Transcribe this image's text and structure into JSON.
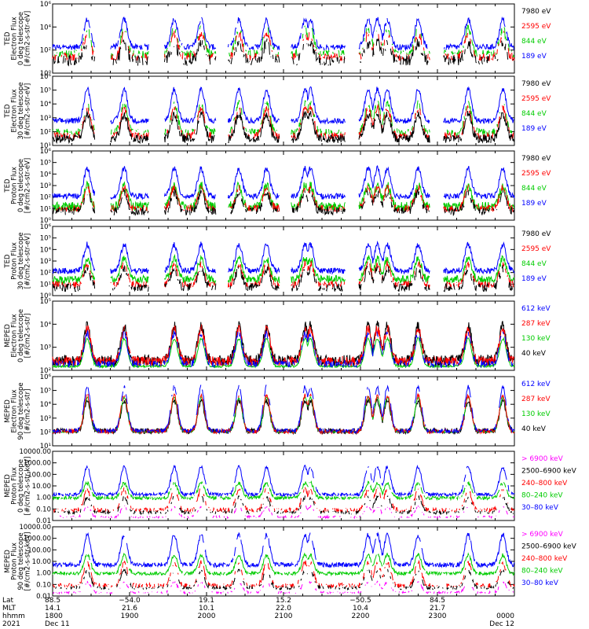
{
  "chart_data": [
    {
      "type": "line",
      "ylabel_lines": [
        "TED",
        "Electron Flux",
        "0 deg telescope",
        "[#/cm2-s-str-eV]"
      ],
      "yscale": "log",
      "ylim": [
        1,
        1000000
      ],
      "yticks": [
        {
          "v": 1,
          "label": "10⁰"
        },
        {
          "v": 100,
          "label": "10²"
        },
        {
          "v": 10000,
          "label": "10⁴"
        },
        {
          "v": 1000000,
          "label": "10⁶"
        }
      ],
      "series": [
        {
          "name": "7980 eV",
          "color": "#000000",
          "base": 12,
          "peak": 1.5,
          "noise": 0.45,
          "level": 0.32,
          "gaps": true
        },
        {
          "name": "2595 eV",
          "color": "#ff0000",
          "base": 25,
          "peak": 2.0,
          "noise": 0.35,
          "level": 0.22,
          "gaps": true
        },
        {
          "name": "844 eV",
          "color": "#00cc00",
          "base": 45,
          "peak": 2.2,
          "noise": 0.35,
          "level": 0.22,
          "gaps": true
        },
        {
          "name": "189 eV",
          "color": "#0000ff",
          "base": 180,
          "peak": 2.4,
          "noise": 0.25,
          "level": 0.9,
          "gaps": true
        }
      ]
    },
    {
      "type": "line",
      "ylabel_lines": [
        "TED",
        "Electron Flux",
        "30 deg telescope",
        "[#/cm2-s-str-eV]"
      ],
      "yscale": "log",
      "ylim": [
        10,
        1000000
      ],
      "yticks": [
        {
          "v": 10,
          "label": "10¹"
        },
        {
          "v": 100,
          "label": "10²"
        },
        {
          "v": 1000,
          "label": "10³"
        },
        {
          "v": 10000,
          "label": "10⁴"
        },
        {
          "v": 100000,
          "label": "10⁵"
        },
        {
          "v": 1000000,
          "label": "10⁶"
        }
      ],
      "series": [
        {
          "name": "7980 eV",
          "color": "#000000",
          "base": 30,
          "peak": 1.8,
          "noise": 0.3,
          "level": 0.9,
          "gaps": true
        },
        {
          "name": "2595 eV",
          "color": "#ff0000",
          "base": 50,
          "peak": 2.0,
          "noise": 0.25,
          "level": 0.5,
          "gaps": true
        },
        {
          "name": "844 eV",
          "color": "#00cc00",
          "base": 90,
          "peak": 2.1,
          "noise": 0.25,
          "level": 0.4,
          "gaps": true
        },
        {
          "name": "189 eV",
          "color": "#0000ff",
          "base": 600,
          "peak": 2.3,
          "noise": 0.2,
          "level": 1.0,
          "gaps": true
        }
      ]
    },
    {
      "type": "line",
      "ylabel_lines": [
        "TED",
        "Proton Flux",
        "0 deg telescope",
        "[#/cm2-s-str-eV]"
      ],
      "yscale": "log",
      "ylim": [
        1,
        1000000
      ],
      "yticks": [
        {
          "v": 1,
          "label": "10⁰"
        },
        {
          "v": 10,
          "label": "10¹"
        },
        {
          "v": 100,
          "label": "10²"
        },
        {
          "v": 1000,
          "label": "10³"
        },
        {
          "v": 10000,
          "label": "10⁴"
        },
        {
          "v": 100000,
          "label": "10⁵"
        },
        {
          "v": 1000000,
          "label": "10⁶"
        }
      ],
      "series": [
        {
          "name": "7980 eV",
          "color": "#000000",
          "base": 6,
          "peak": 1.6,
          "noise": 0.35,
          "level": 0.5,
          "gaps": true
        },
        {
          "name": "2595 eV",
          "color": "#ff0000",
          "base": 10,
          "peak": 1.8,
          "noise": 0.3,
          "level": 0.5,
          "gaps": true
        },
        {
          "name": "844 eV",
          "color": "#00cc00",
          "base": 15,
          "peak": 1.8,
          "noise": 0.4,
          "level": 1.0,
          "gaps": true
        },
        {
          "name": "189 eV",
          "color": "#0000ff",
          "base": 120,
          "peak": 2.4,
          "noise": 0.25,
          "level": 1.0,
          "gaps": true
        }
      ]
    },
    {
      "type": "line",
      "ylabel_lines": [
        "TED",
        "Proton Flux",
        "30 deg telescope",
        "[#/cm2-s-str-eV]"
      ],
      "yscale": "log",
      "ylim": [
        1,
        1000000
      ],
      "yticks": [
        {
          "v": 1,
          "label": "10⁰"
        },
        {
          "v": 10,
          "label": "10¹"
        },
        {
          "v": 100,
          "label": "10²"
        },
        {
          "v": 1000,
          "label": "10³"
        },
        {
          "v": 10000,
          "label": "10⁴"
        },
        {
          "v": 100000,
          "label": "10⁵"
        },
        {
          "v": 1000000,
          "label": "10⁶"
        }
      ],
      "series": [
        {
          "name": "7980 eV",
          "color": "#000000",
          "base": 5,
          "peak": 1.6,
          "noise": 0.35,
          "level": 0.5,
          "gaps": true
        },
        {
          "name": "2595 eV",
          "color": "#ff0000",
          "base": 9,
          "peak": 1.8,
          "noise": 0.3,
          "level": 0.5,
          "gaps": true
        },
        {
          "name": "844 eV",
          "color": "#00cc00",
          "base": 25,
          "peak": 1.8,
          "noise": 0.35,
          "level": 1.0,
          "gaps": true
        },
        {
          "name": "189 eV",
          "color": "#0000ff",
          "base": 140,
          "peak": 2.3,
          "noise": 0.25,
          "level": 1.0,
          "gaps": true
        }
      ]
    },
    {
      "type": "line",
      "ylabel_lines": [
        "MEPED",
        "Electron Flux",
        "0 deg telescope",
        "[#/cm2-s-str]"
      ],
      "yscale": "log",
      "ylim": [
        100,
        100000
      ],
      "yticks": [
        {
          "v": 100,
          "label": "10²"
        },
        {
          "v": 1000,
          "label": "10³"
        },
        {
          "v": 10000,
          "label": "10⁴"
        },
        {
          "v": 100000,
          "label": "10⁵"
        }
      ],
      "series": [
        {
          "name": "612 keV",
          "color": "#0000ff",
          "base": 190,
          "peak": 1.3,
          "noise": 0.15,
          "level": 0.5,
          "gaps": false
        },
        {
          "name": "287 keV",
          "color": "#ff0000",
          "base": 250,
          "peak": 1.4,
          "noise": 0.2,
          "level": 0.9,
          "gaps": false
        },
        {
          "name": "130 keV",
          "color": "#00cc00",
          "base": 150,
          "peak": 1.2,
          "noise": 0.05,
          "level": 1.0,
          "gaps": false
        },
        {
          "name": "40 keV",
          "color": "#000000",
          "base": 260,
          "peak": 1.5,
          "noise": 0.25,
          "level": 1.0,
          "gaps": false
        }
      ]
    },
    {
      "type": "line",
      "ylabel_lines": [
        "MEPED",
        "Electron Flux",
        "90 deg telescope",
        "[#/cm2-s-str]"
      ],
      "yscale": "log",
      "ylim": [
        10,
        1000000
      ],
      "yticks": [
        {
          "v": 10,
          "label": "10¹"
        },
        {
          "v": 100,
          "label": "10²"
        },
        {
          "v": 1000,
          "label": "10³"
        },
        {
          "v": 10000,
          "label": "10⁴"
        },
        {
          "v": 100000,
          "label": "10⁵"
        },
        {
          "v": 1000000,
          "label": "10⁶"
        }
      ],
      "series": [
        {
          "name": "612 keV",
          "color": "#0000ff",
          "base": 120,
          "peak": 3.2,
          "noise": 0.15,
          "level": 0.6,
          "gaps": false
        },
        {
          "name": "287 keV",
          "color": "#ff0000",
          "base": 110,
          "peak": 2.6,
          "noise": 0.15,
          "level": 0.8,
          "gaps": false
        },
        {
          "name": "130 keV",
          "color": "#00cc00",
          "base": 100,
          "peak": 2.5,
          "noise": 0.05,
          "level": 1.0,
          "gaps": false
        },
        {
          "name": "40 keV",
          "color": "#000000",
          "base": 115,
          "peak": 2.2,
          "noise": 0.2,
          "level": 1.0,
          "gaps": false
        }
      ]
    },
    {
      "type": "line",
      "ylabel_lines": [
        "MEPED",
        "Proton Flux",
        "0 deg telescope",
        "[#/cm2-s-str-keV]"
      ],
      "yscale": "log",
      "ylim": [
        0.01,
        10000
      ],
      "yticks": [
        {
          "v": 0.01,
          "label": "0.01"
        },
        {
          "v": 0.1,
          "label": "0.10"
        },
        {
          "v": 1,
          "label": "1.00"
        },
        {
          "v": 10,
          "label": "10.00"
        },
        {
          "v": 100,
          "label": "100.00"
        },
        {
          "v": 1000,
          "label": "1000.00"
        },
        {
          "v": 10000,
          "label": "10000.00"
        }
      ],
      "series": [
        {
          "name": "> 6900 keV",
          "color": "#ff00ff",
          "base": 0.02,
          "peak": 0.9,
          "noise": 0.1,
          "level": 0.05,
          "gaps": false
        },
        {
          "name": "2500–6900 keV",
          "color": "#000000",
          "base": 0.05,
          "peak": 1.3,
          "noise": 0.15,
          "level": 0.1,
          "gaps": false
        },
        {
          "name": "240–800 keV",
          "color": "#ff0000",
          "base": 0.08,
          "peak": 1.8,
          "noise": 0.2,
          "level": 0.3,
          "gaps": false
        },
        {
          "name": "80–240 keV",
          "color": "#00cc00",
          "base": 0.9,
          "peak": 1.3,
          "noise": 0.15,
          "level": 0.8,
          "gaps": false
        },
        {
          "name": "30–80 keV",
          "color": "#0000ff",
          "base": 1.8,
          "peak": 2.4,
          "noise": 0.15,
          "level": 0.9,
          "gaps": false
        }
      ]
    },
    {
      "type": "line",
      "ylabel_lines": [
        "MEPED",
        "Proton Flux",
        "90 deg telescope",
        "[#/cm2-s-str-keV]"
      ],
      "yscale": "log",
      "ylim": [
        0.01,
        10000
      ],
      "yticks": [
        {
          "v": 0.01,
          "label": "0.01"
        },
        {
          "v": 0.1,
          "label": "0.10"
        },
        {
          "v": 1,
          "label": "1.00"
        },
        {
          "v": 10,
          "label": "10.00"
        },
        {
          "v": 100,
          "label": "100.00"
        },
        {
          "v": 1000,
          "label": "1000.00"
        },
        {
          "v": 10000,
          "label": "10000.00"
        }
      ],
      "series": [
        {
          "name": "> 6900 keV",
          "color": "#ff00ff",
          "base": 0.02,
          "peak": 0.9,
          "noise": 0.1,
          "level": 0.05,
          "gaps": false
        },
        {
          "name": "2500–6900 keV",
          "color": "#000000",
          "base": 0.05,
          "peak": 1.5,
          "noise": 0.15,
          "level": 0.1,
          "gaps": false
        },
        {
          "name": "240–800 keV",
          "color": "#ff0000",
          "base": 0.08,
          "peak": 2.0,
          "noise": 0.2,
          "level": 0.3,
          "gaps": false
        },
        {
          "name": "80–240 keV",
          "color": "#00cc00",
          "base": 0.9,
          "peak": 1.6,
          "noise": 0.15,
          "level": 0.9,
          "gaps": false
        },
        {
          "name": "30–80 keV",
          "color": "#0000ff",
          "base": 5,
          "peak": 2.6,
          "noise": 0.2,
          "level": 0.9,
          "gaps": false
        }
      ]
    }
  ],
  "xaxis": {
    "row_labels": [
      "Lat",
      "MLT",
      "hhmm",
      "2021"
    ],
    "columns": [
      {
        "lat": "88.5",
        "mlt": "14.1",
        "hhmm": "1800",
        "date": "Dec 11"
      },
      {
        "lat": "−54.0",
        "mlt": "21.6",
        "hhmm": "1900",
        "date": ""
      },
      {
        "lat": "19.1",
        "mlt": "10.1",
        "hhmm": "2000",
        "date": ""
      },
      {
        "lat": "15.2",
        "mlt": "22.0",
        "hhmm": "2100",
        "date": ""
      },
      {
        "lat": "−50.5",
        "mlt": "10.4",
        "hhmm": "2200",
        "date": ""
      },
      {
        "lat": "84.5",
        "mlt": "21.7",
        "hhmm": "2300",
        "date": ""
      },
      {
        "lat": "",
        "mlt": "",
        "hhmm": "0000",
        "date": "Dec 12"
      }
    ],
    "xlim_hours": [
      18,
      24
    ]
  }
}
